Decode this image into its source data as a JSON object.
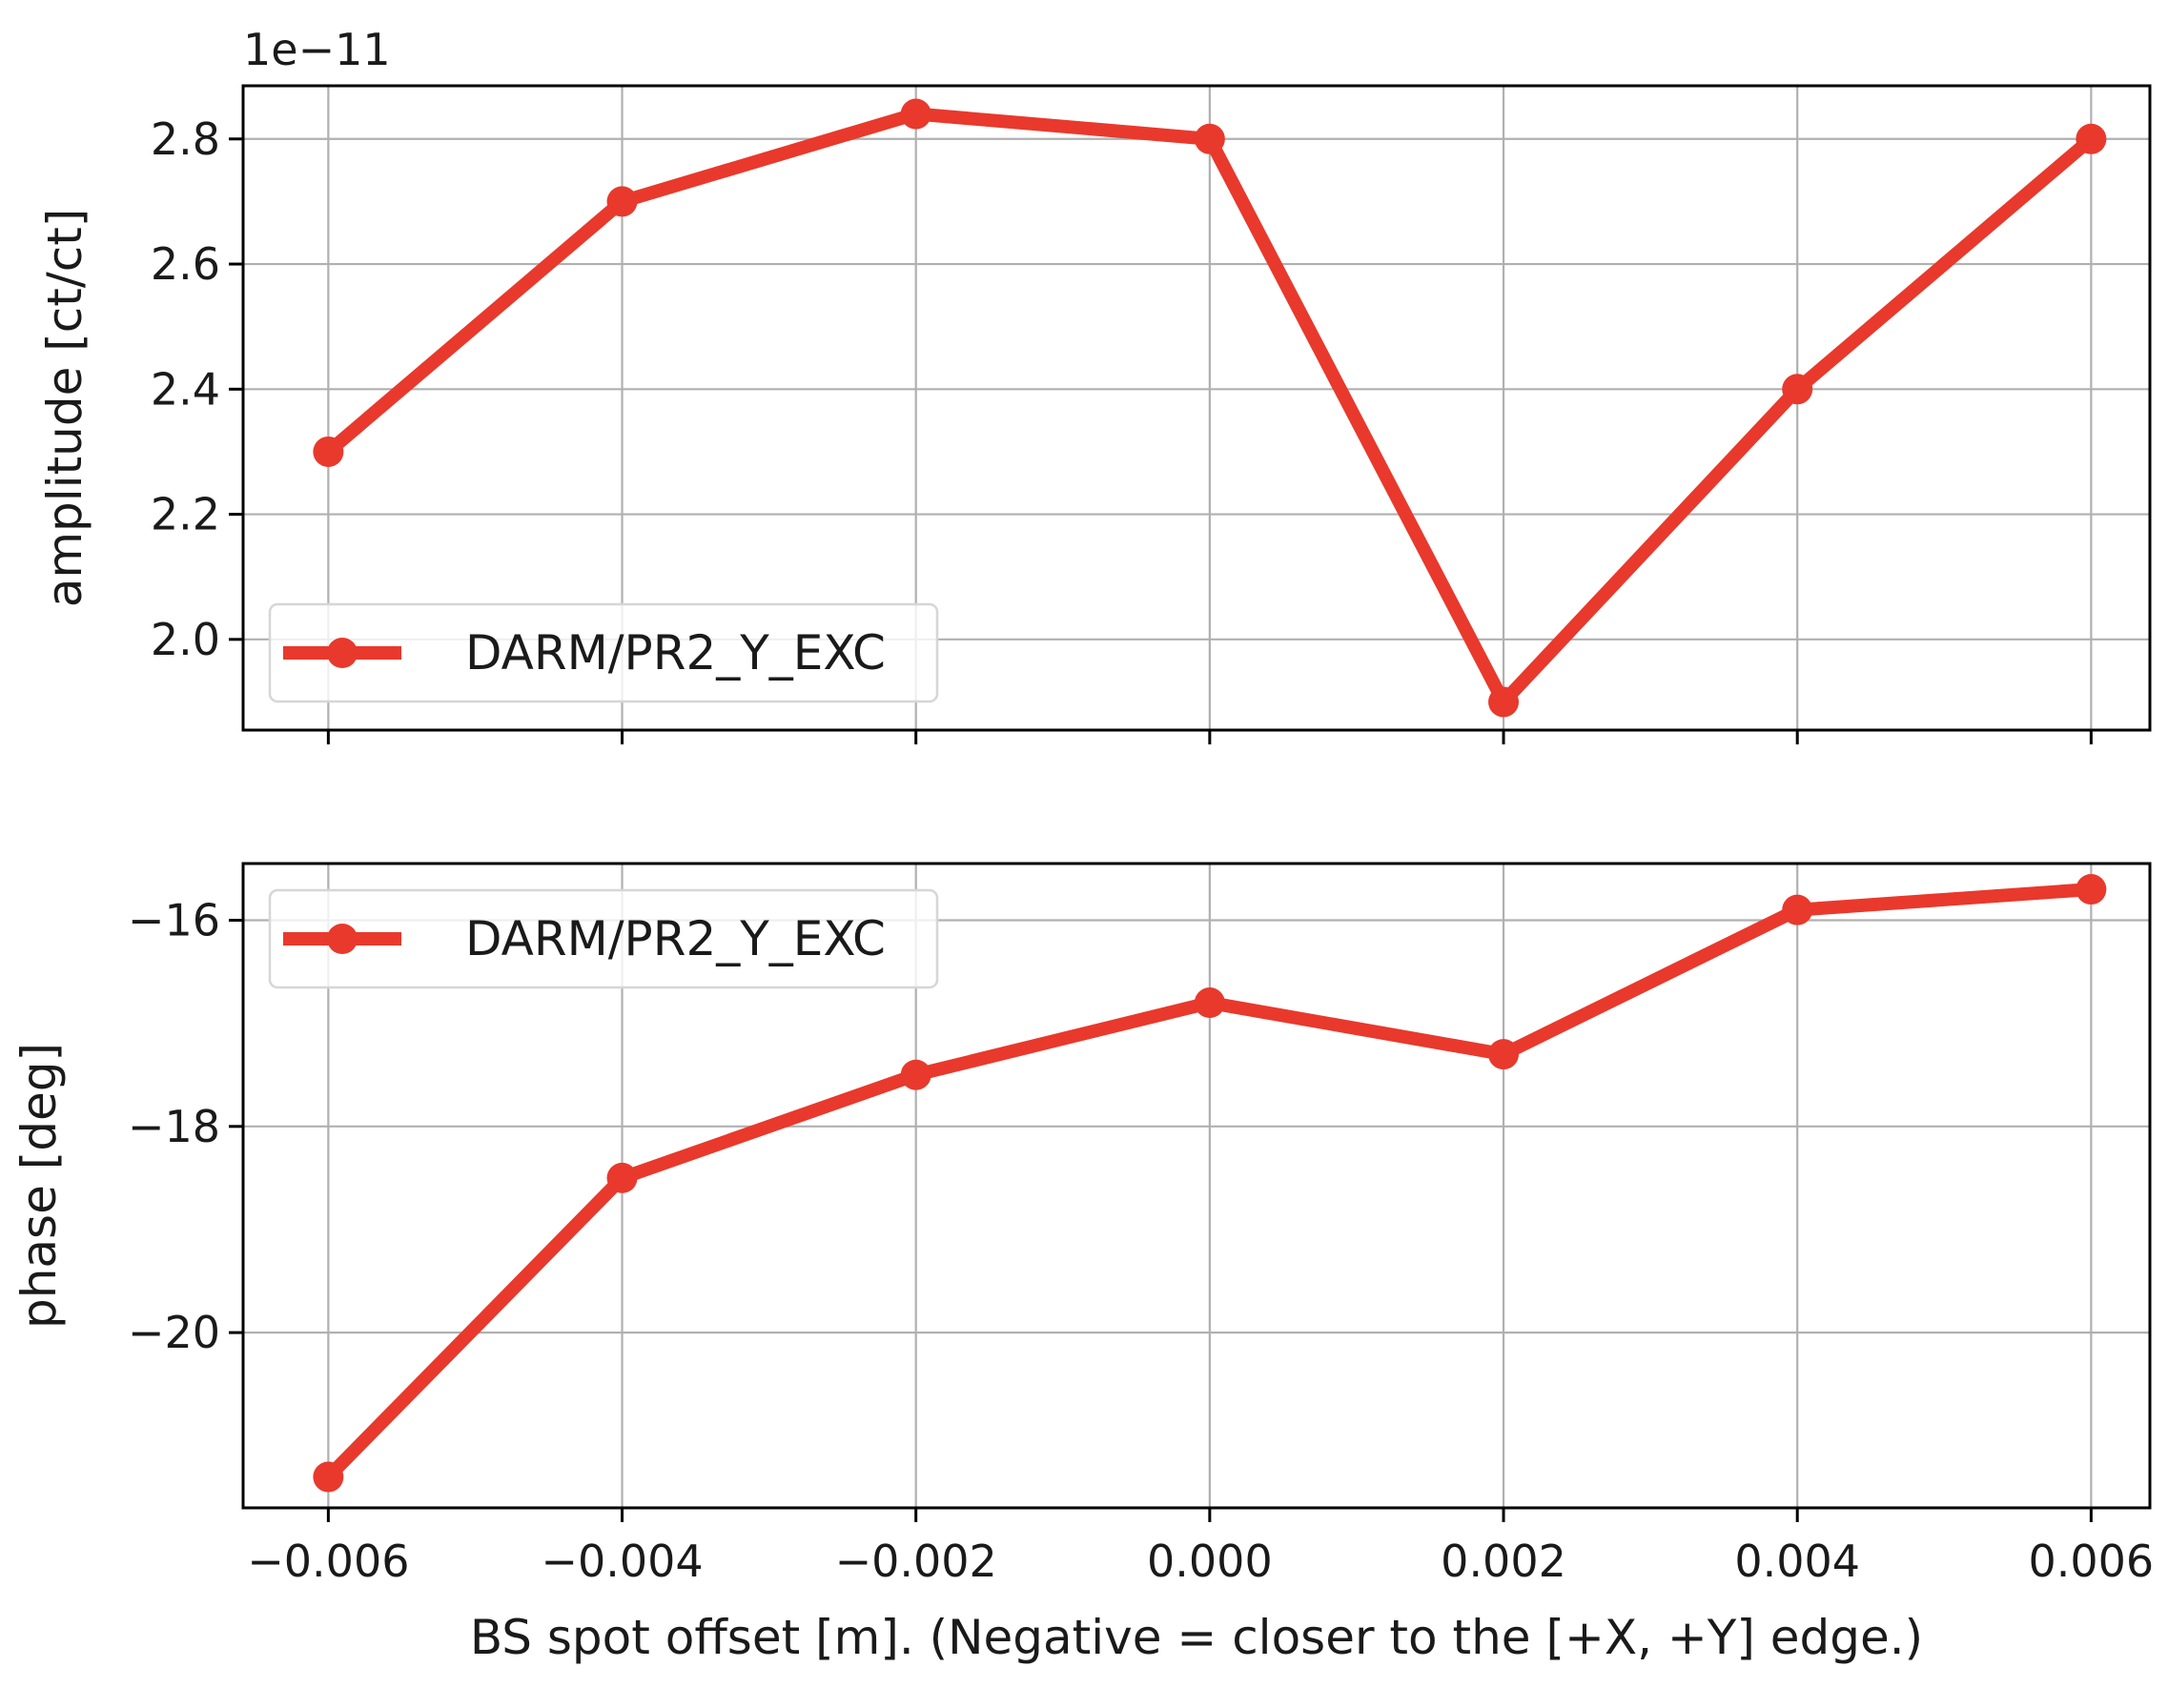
{
  "chart_data": [
    {
      "type": "line",
      "ylabel": "amplitude [ct/ct]",
      "xlabel": "",
      "y_offset_text": "1e−11",
      "x": [
        -0.006,
        -0.004,
        -0.002,
        0.0,
        0.002,
        0.004,
        0.006
      ],
      "xlim": [
        -0.00658,
        0.0064
      ],
      "ylim": [
        1.855,
        2.885
      ],
      "xticks": [
        -0.006,
        -0.004,
        -0.002,
        0.0,
        0.002,
        0.004,
        0.006
      ],
      "yticks": [
        2.0,
        2.2,
        2.4,
        2.6,
        2.8
      ],
      "ytick_labels": [
        "2.0",
        "2.2",
        "2.4",
        "2.6",
        "2.8"
      ],
      "show_xtick_labels": false,
      "grid": true,
      "legend_position": "lower-left",
      "series": [
        {
          "name": "DARM/PR2_Y_EXC",
          "color": "#e8392c",
          "marker": "circle",
          "values": [
            2.3,
            2.7,
            2.84,
            2.8,
            1.9,
            2.4,
            2.8
          ]
        }
      ]
    },
    {
      "type": "line",
      "ylabel": "phase [deg]",
      "xlabel": "BS spot offset [m]. (Negative = closer to the [+X, +Y] edge.)",
      "x": [
        -0.006,
        -0.004,
        -0.002,
        0.0,
        0.002,
        0.004,
        0.006
      ],
      "xlim": [
        -0.00658,
        0.0064
      ],
      "ylim": [
        -21.7,
        -15.45
      ],
      "xticks": [
        -0.006,
        -0.004,
        -0.002,
        0.0,
        0.002,
        0.004,
        0.006
      ],
      "xtick_labels": [
        "−0.006",
        "−0.004",
        "−0.002",
        "0.000",
        "0.002",
        "0.004",
        "0.006"
      ],
      "yticks": [
        -20,
        -18,
        -16
      ],
      "ytick_labels": [
        "−20",
        "−18",
        "−16"
      ],
      "show_xtick_labels": true,
      "grid": true,
      "legend_position": "upper-left",
      "series": [
        {
          "name": "DARM/PR2_Y_EXC",
          "color": "#e8392c",
          "marker": "circle",
          "values": [
            -21.4,
            -18.5,
            -17.5,
            -16.8,
            -17.3,
            -15.9,
            -15.7
          ]
        }
      ]
    }
  ]
}
